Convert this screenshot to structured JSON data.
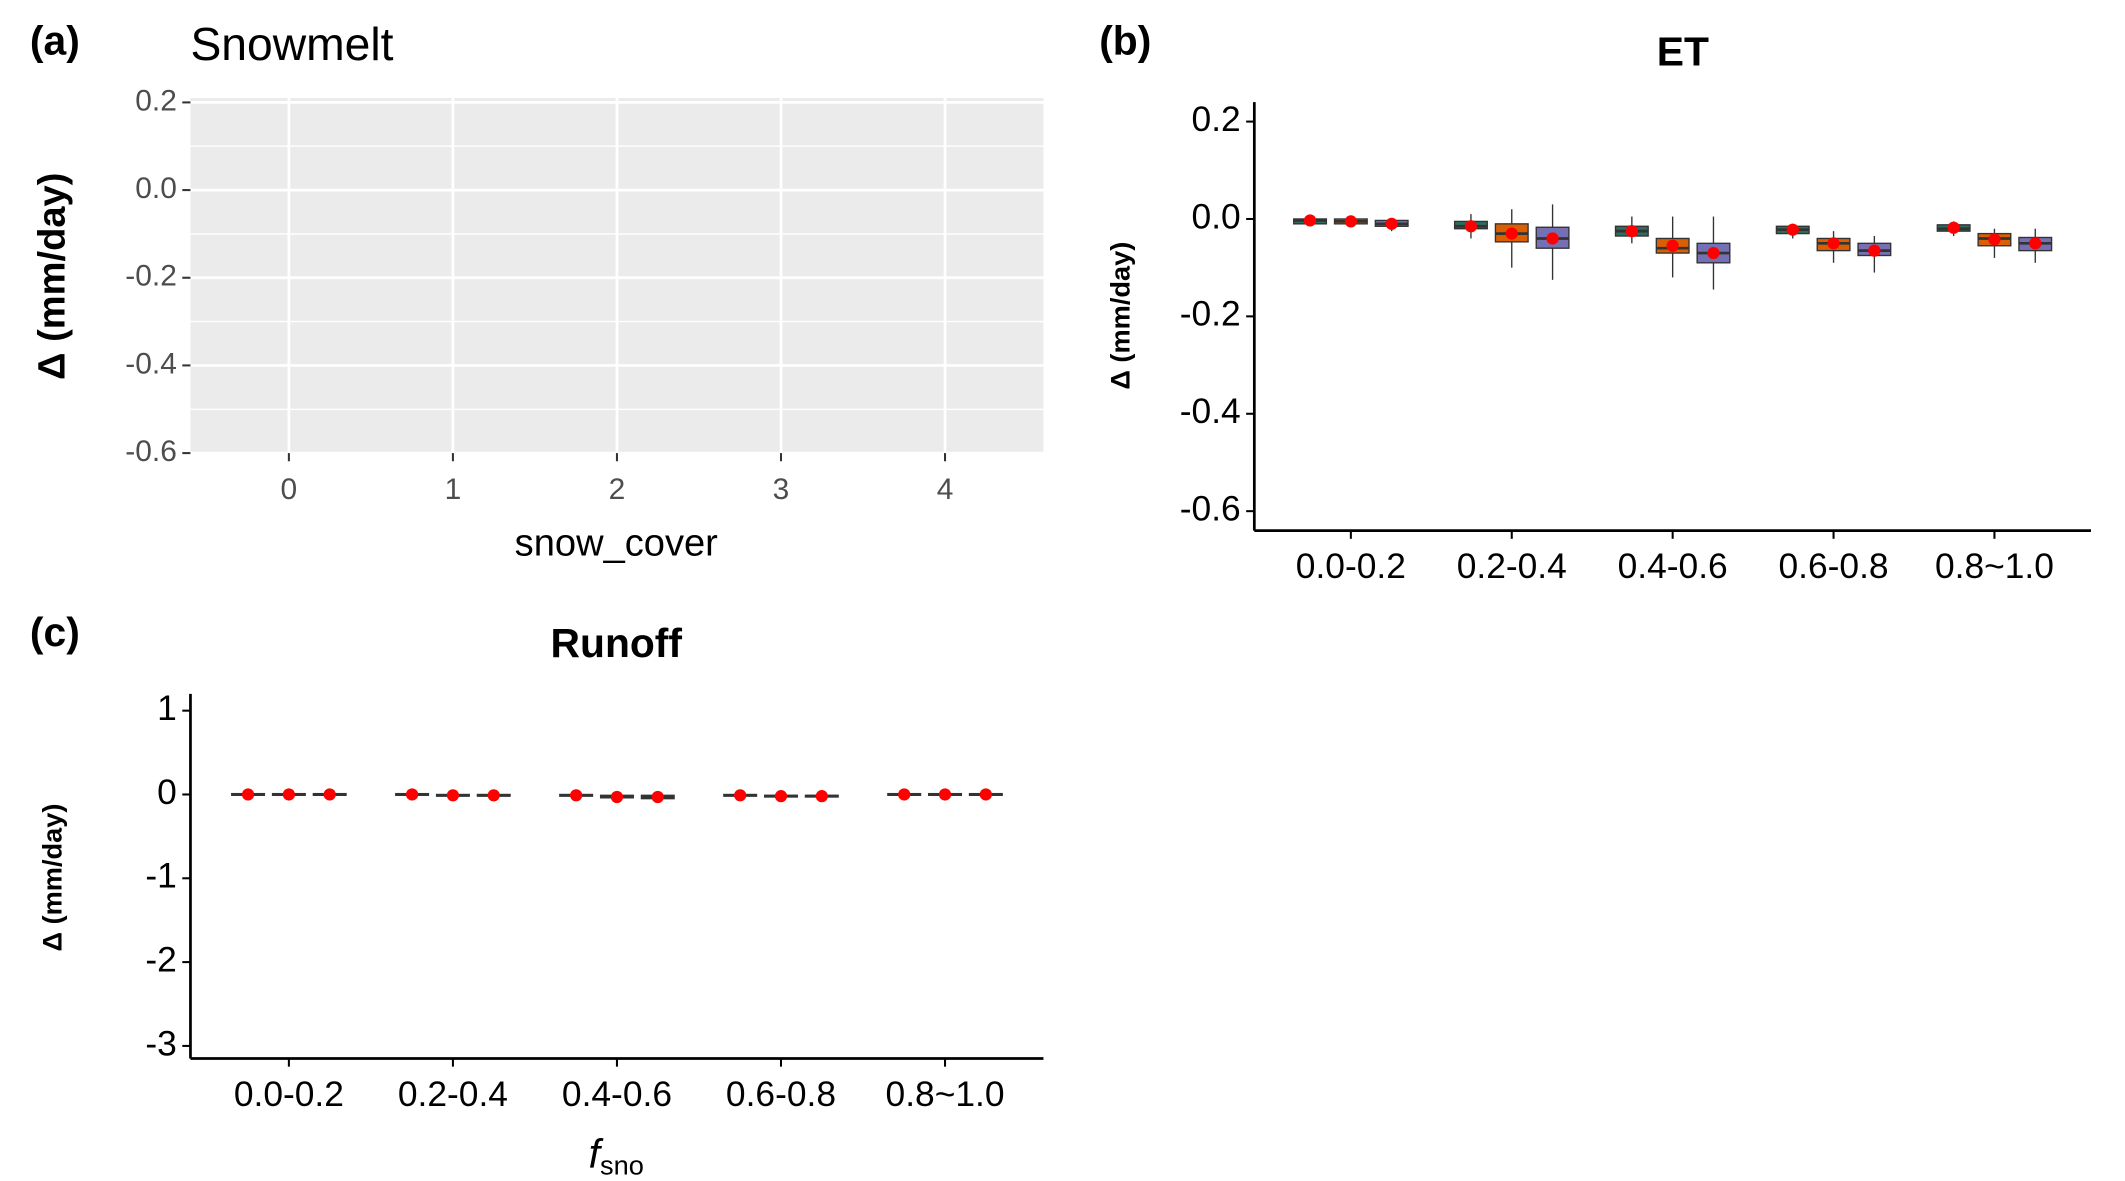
{
  "chart_data": [
    {
      "type": "blank",
      "panel_label": "(a)",
      "title": "Snowmelt",
      "x_label": "snow_cover",
      "y_label": "Δ (mm/day)",
      "xlim": [
        -0.6,
        4.6
      ],
      "xticks": [
        0,
        1,
        2,
        3,
        4
      ],
      "ylim": [
        -0.6,
        0.21
      ],
      "yticks": [
        0.2,
        {
          "value": 0,
          "label": "0.0"
        },
        -0.2,
        -0.4,
        -0.6
      ],
      "minor_yticks": [
        0.1,
        -0.1,
        -0.3,
        -0.5
      ],
      "grid": true,
      "background": "#ebebeb"
    },
    {
      "type": "box",
      "panel_label": "(b)",
      "title": "ET",
      "y_label": "Δ (mm/day)",
      "categories": [
        "0.0-0.2",
        "0.2-0.4",
        "0.4-0.6",
        "0.6-0.8",
        "0.8~1.0"
      ],
      "ylim": [
        -0.64,
        0.24
      ],
      "yticks": [
        0.2,
        {
          "value": 0,
          "label": "0.0"
        },
        -0.2,
        -0.4,
        -0.6
      ],
      "mean_color": "#ff0000",
      "series": [
        {
          "color": "#2f6b5f",
          "whisker_low": [
            -0.015,
            -0.04,
            -0.05,
            -0.04,
            -0.035
          ],
          "q1": [
            -0.01,
            -0.02,
            -0.035,
            -0.03,
            -0.025
          ],
          "median": [
            -0.003,
            -0.015,
            -0.025,
            -0.022,
            -0.02
          ],
          "q3": [
            0,
            -0.005,
            -0.015,
            -0.015,
            -0.012
          ],
          "whisker_high": [
            0.005,
            0.01,
            0.005,
            -0.01,
            -0.005
          ],
          "mean": [
            -0.003,
            -0.015,
            -0.025,
            -0.022,
            -0.018
          ]
        },
        {
          "color": "#d95f02",
          "whisker_low": [
            -0.015,
            -0.1,
            -0.12,
            -0.09,
            -0.08
          ],
          "q1": [
            -0.01,
            -0.047,
            -0.07,
            -0.065,
            -0.055
          ],
          "median": [
            -0.005,
            -0.03,
            -0.06,
            -0.05,
            -0.04
          ],
          "q3": [
            0,
            -0.01,
            -0.04,
            -0.04,
            -0.03
          ],
          "whisker_high": [
            0.005,
            0.02,
            0.005,
            -0.025,
            -0.02
          ],
          "mean": [
            -0.005,
            -0.03,
            -0.055,
            -0.05,
            -0.042
          ]
        },
        {
          "color": "#7570b3",
          "whisker_low": [
            -0.025,
            -0.125,
            -0.145,
            -0.11,
            -0.09
          ],
          "q1": [
            -0.015,
            -0.06,
            -0.09,
            -0.075,
            -0.065
          ],
          "median": [
            -0.01,
            -0.04,
            -0.07,
            -0.065,
            -0.05
          ],
          "q3": [
            -0.003,
            -0.017,
            -0.05,
            -0.05,
            -0.038
          ],
          "whisker_high": [
            0,
            0.03,
            0.005,
            -0.035,
            -0.02
          ],
          "mean": [
            -0.01,
            -0.04,
            -0.07,
            -0.065,
            -0.05
          ]
        }
      ]
    },
    {
      "type": "box",
      "panel_label": "(c)",
      "title": "Runoff",
      "y_label": "Δ (mm/day)",
      "x_label": {
        "main": "f",
        "sub": "sno"
      },
      "categories": [
        "0.0-0.2",
        "0.2-0.4",
        "0.4-0.6",
        "0.6-0.8",
        "0.8~1.0"
      ],
      "ylim": [
        -3.15,
        1.2
      ],
      "yticks": [
        1,
        0,
        -1,
        -2,
        -3
      ],
      "mean_color": "#ff0000",
      "series": [
        {
          "color": "#2f6b5f",
          "whisker_low": [
            -0.01,
            -0.02,
            -0.03,
            -0.02,
            -0.01
          ],
          "q1": [
            -0.01,
            -0.01,
            -0.02,
            -0.02,
            -0.01
          ],
          "median": [
            0,
            0,
            -0.01,
            -0.01,
            0
          ],
          "q3": [
            0.01,
            0.01,
            0,
            0,
            0.01
          ],
          "whisker_high": [
            0.01,
            0.01,
            0.01,
            0.01,
            0.01
          ],
          "mean": [
            0,
            0,
            -0.01,
            -0.01,
            0
          ]
        },
        {
          "color": "#d95f02",
          "whisker_low": [
            -0.01,
            -0.03,
            -0.06,
            -0.04,
            -0.01
          ],
          "q1": [
            -0.01,
            -0.02,
            -0.04,
            -0.03,
            -0.01
          ],
          "median": [
            0,
            -0.01,
            -0.03,
            -0.02,
            0
          ],
          "q3": [
            0.01,
            0,
            -0.01,
            -0.01,
            0.01
          ],
          "whisker_high": [
            0.01,
            0.01,
            0,
            0,
            0.01
          ],
          "mean": [
            0,
            -0.01,
            -0.03,
            -0.02,
            0
          ]
        },
        {
          "color": "#7570b3",
          "whisker_low": [
            -0.01,
            -0.03,
            -0.07,
            -0.04,
            -0.01
          ],
          "q1": [
            -0.01,
            -0.02,
            -0.05,
            -0.03,
            -0.01
          ],
          "median": [
            0,
            -0.01,
            -0.03,
            -0.02,
            0
          ],
          "q3": [
            0.01,
            0,
            -0.01,
            -0.01,
            0.01
          ],
          "whisker_high": [
            0.01,
            0.01,
            0,
            0,
            0.01
          ],
          "mean": [
            0,
            -0.01,
            -0.03,
            -0.02,
            0
          ]
        }
      ]
    }
  ]
}
